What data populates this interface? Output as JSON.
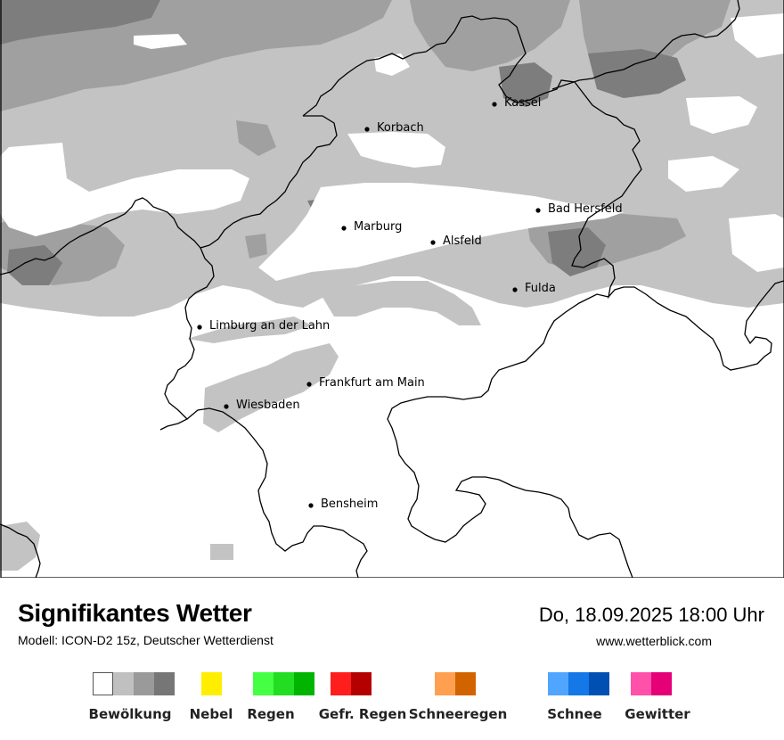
{
  "map": {
    "cities": [
      {
        "name": "Kassel"
      },
      {
        "name": "Korbach"
      },
      {
        "name": "Bad Hersfeld"
      },
      {
        "name": "Marburg"
      },
      {
        "name": "Alsfeld"
      },
      {
        "name": "Fulda"
      },
      {
        "name": "Limburg an der Lahn"
      },
      {
        "name": "Frankfurt am Main"
      },
      {
        "name": "Wiesbaden"
      },
      {
        "name": "Bensheim"
      }
    ]
  },
  "header": {
    "title": "Signifikantes Wetter",
    "model": "Modell: ICON-D2 15z, Deutscher Wetterdienst",
    "datetime": "Do, 18.09.2025 18:00 Uhr",
    "website": "www.wetterblick.com"
  },
  "legend": [
    {
      "label": "Bewölkung",
      "colors": [
        "#ffffff",
        "#c0c0c0",
        "#9a9a9a",
        "#767676"
      ]
    },
    {
      "label": "Nebel",
      "colors": [
        "#ffee00"
      ]
    },
    {
      "label": "Regen",
      "colors": [
        "#44ff44",
        "#22dd22",
        "#00b400"
      ]
    },
    {
      "label": "Gefr. Regen",
      "colors": [
        "#ff1e1e",
        "#b40000"
      ]
    },
    {
      "label": "Schneeregen",
      "colors": [
        "#ffa050",
        "#d26400"
      ]
    },
    {
      "label": "Schnee",
      "colors": [
        "#50a5ff",
        "#1478e6",
        "#0050b4"
      ]
    },
    {
      "label": "Gewitter",
      "colors": [
        "#ff50aa",
        "#e60078"
      ]
    }
  ],
  "colors": {
    "cloud_light": "#c3c3c3",
    "cloud_medium": "#a0a0a0",
    "cloud_dark": "#7d7d7d",
    "border": "#000000"
  }
}
